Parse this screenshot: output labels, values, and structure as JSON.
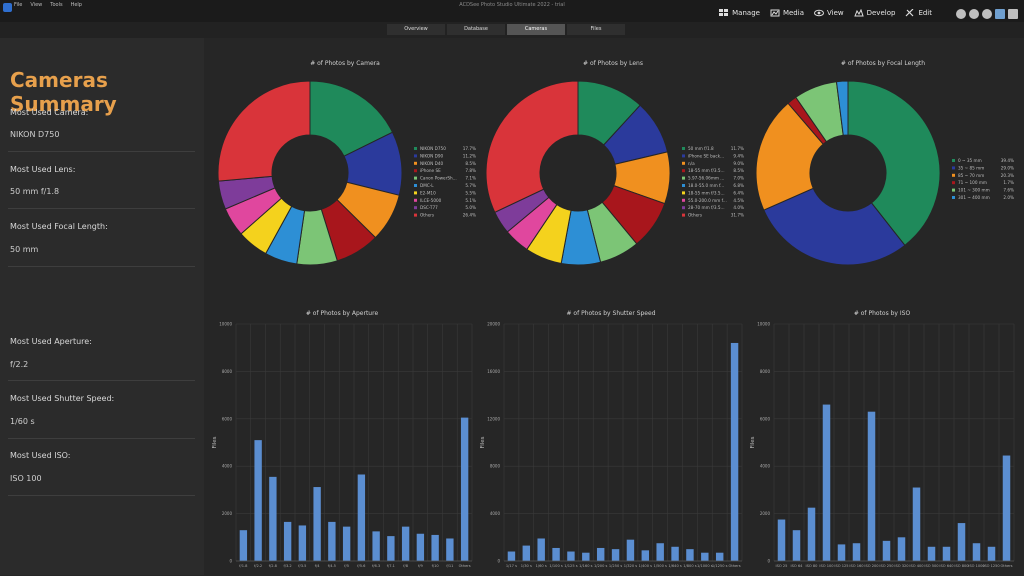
{
  "window": {
    "title": "ACDSee Photo Studio Ultimate 2022 - trial",
    "menu": [
      "File",
      "View",
      "Tools",
      "Help"
    ],
    "modes": [
      "Manage",
      "Media",
      "View",
      "Develop",
      "Edit"
    ]
  },
  "tabs": [
    {
      "label": "Overview",
      "active": false
    },
    {
      "label": "Database",
      "active": false
    },
    {
      "label": "Cameras",
      "active": true
    },
    {
      "label": "Files",
      "active": false
    }
  ],
  "summary": {
    "title": "Cameras Summary",
    "camera_label": "Most Used Camera:",
    "camera_value": "NIKON D750",
    "lens_label": "Most Used Lens:",
    "lens_value": "50 mm f/1.8",
    "focal_label": "Most Used Focal Length:",
    "focal_value": "50 mm",
    "aperture_label": "Most Used Aperture:",
    "aperture_value": "f/2.2",
    "shutter_label": "Most Used Shutter Speed:",
    "shutter_value": "1/60 s",
    "iso_label": "Most Used ISO:",
    "iso_value": "ISO 100"
  },
  "chart_data": [
    {
      "type": "pie",
      "title": "# of Photos by Camera",
      "slices": [
        {
          "label": "NIKON D750",
          "value": 17.7,
          "pct": "17.7%",
          "color": "#1f8a5b"
        },
        {
          "label": "NIKON D90",
          "value": 11.2,
          "pct": "11.2%",
          "color": "#2b3a9c"
        },
        {
          "label": "NIKON D40",
          "value": 8.5,
          "pct": "8.5%",
          "color": "#f0901f"
        },
        {
          "label": "iPhone SE",
          "value": 7.8,
          "pct": "7.8%",
          "color": "#a8161c"
        },
        {
          "label": "Canon PowerSh...",
          "value": 7.1,
          "pct": "7.1%",
          "color": "#7cc576"
        },
        {
          "label": "DMC-L",
          "value": 5.7,
          "pct": "5.7%",
          "color": "#2d8fd5"
        },
        {
          "label": "E2-M10",
          "value": 5.5,
          "pct": "5.5%",
          "color": "#f4d21d"
        },
        {
          "label": "ILCE-5000",
          "value": 5.1,
          "pct": "5.1%",
          "color": "#e0479e"
        },
        {
          "label": "DSC-T77",
          "value": 5.0,
          "pct": "5.0%",
          "color": "#7e3c9a"
        },
        {
          "label": "Others",
          "value": 26.4,
          "pct": "26.4%",
          "color": "#d9343a"
        }
      ]
    },
    {
      "type": "pie",
      "title": "# of Photos by Lens",
      "slices": [
        {
          "label": "50 mm f/1.8",
          "value": 11.7,
          "pct": "11.7%",
          "color": "#1f8a5b"
        },
        {
          "label": "iPhone SE back...",
          "value": 9.4,
          "pct": "9.4%",
          "color": "#2b3a9c"
        },
        {
          "label": "n/a",
          "value": 9.0,
          "pct": "9.0%",
          "color": "#f0901f"
        },
        {
          "label": "18-55 mm f/3.5...",
          "value": 8.5,
          "pct": "8.5%",
          "color": "#a8161c"
        },
        {
          "label": "5.97-56.06mm ...",
          "value": 7.0,
          "pct": "7.0%",
          "color": "#7cc576"
        },
        {
          "label": "18.0-55.0 mm f...",
          "value": 6.8,
          "pct": "6.8%",
          "color": "#2d8fd5"
        },
        {
          "label": "18-55 mm f/3.5...",
          "value": 6.4,
          "pct": "6.4%",
          "color": "#f4d21d"
        },
        {
          "label": "55.0-200.0 mm f...",
          "value": 4.5,
          "pct": "4.5%",
          "color": "#e0479e"
        },
        {
          "label": "28-70 mm f/3.5...",
          "value": 4.0,
          "pct": "4.0%",
          "color": "#7e3c9a"
        },
        {
          "label": "Others",
          "value": 31.7,
          "pct": "31.7%",
          "color": "#d9343a"
        }
      ]
    },
    {
      "type": "pie",
      "title": "# of Photos by Focal Length",
      "slices": [
        {
          "label": "0 ~ 35 mm",
          "value": 39.4,
          "pct": "39.4%",
          "color": "#1f8a5b"
        },
        {
          "label": "35 ~ 85 mm",
          "value": 29.0,
          "pct": "29.0%",
          "color": "#2b3a9c"
        },
        {
          "label": "85 ~ 70 mm",
          "value": 20.3,
          "pct": "20.3%",
          "color": "#f0901f"
        },
        {
          "label": "71 ~ 100 mm",
          "value": 1.7,
          "pct": "1.7%",
          "color": "#a8161c"
        },
        {
          "label": "101 ~ 300 mm",
          "value": 7.6,
          "pct": "7.6%",
          "color": "#7cc576"
        },
        {
          "label": "301 ~ 400 mm",
          "value": 2.0,
          "pct": "2.0%",
          "color": "#2d8fd5"
        }
      ]
    },
    {
      "type": "bar",
      "title": "# of Photos by Aperture",
      "ylabel": "Files",
      "ylim": [
        0,
        10000
      ],
      "yticks": [
        "0",
        "2000",
        "4000",
        "6000",
        "8000",
        "10000"
      ],
      "categories": [
        "f/1.8",
        "f/2.2",
        "f/2.8",
        "f/3.2",
        "f/3.5",
        "f/4",
        "f/4.5",
        "f/5",
        "f/5.6",
        "f/6.3",
        "f/7.1",
        "f/8",
        "f/9",
        "f/10",
        "f/11",
        "Others"
      ],
      "values": [
        1300,
        5100,
        3550,
        1650,
        1500,
        3120,
        1650,
        1450,
        3650,
        1250,
        1050,
        1450,
        1150,
        1100,
        950,
        6050
      ],
      "color": "#5b8ed1"
    },
    {
      "type": "bar",
      "title": "# of Photos by Shutter Speed",
      "ylabel": "Files",
      "ylim": [
        0,
        20000
      ],
      "yticks": [
        "0",
        "4000",
        "8000",
        "12000",
        "16000",
        "20000"
      ],
      "categories": [
        "1/17 s",
        "1/30 s",
        "1/60 s",
        "1/100 s",
        "1/125 s",
        "1/160 s",
        "1/200 s",
        "1/250 s",
        "1/320 s",
        "1/400 s",
        "1/500 s",
        "1/640 s",
        "1/800 s",
        "1/1000 s",
        "1/1250 s",
        "Others"
      ],
      "values": [
        800,
        1300,
        1900,
        1100,
        800,
        700,
        1100,
        1000,
        1800,
        900,
        1500,
        1200,
        1000,
        700,
        700,
        18400
      ],
      "color": "#5b8ed1"
    },
    {
      "type": "bar",
      "title": "# of Photos by ISO",
      "ylabel": "Files",
      "ylim": [
        0,
        10000
      ],
      "yticks": [
        "0",
        "2000",
        "4000",
        "6000",
        "8000",
        "10000"
      ],
      "categories": [
        "ISO 25",
        "ISO 64",
        "ISO 80",
        "ISO 100",
        "ISO 125",
        "ISO 160",
        "ISO 200",
        "ISO 250",
        "ISO 320",
        "ISO 400",
        "ISO 500",
        "ISO 640",
        "ISO 800",
        "ISO 1000",
        "ISO 1250",
        "Others"
      ],
      "values": [
        1750,
        1300,
        2250,
        6600,
        700,
        750,
        6300,
        850,
        1000,
        3100,
        600,
        600,
        1600,
        750,
        600,
        4450
      ],
      "color": "#5b8ed1"
    }
  ]
}
